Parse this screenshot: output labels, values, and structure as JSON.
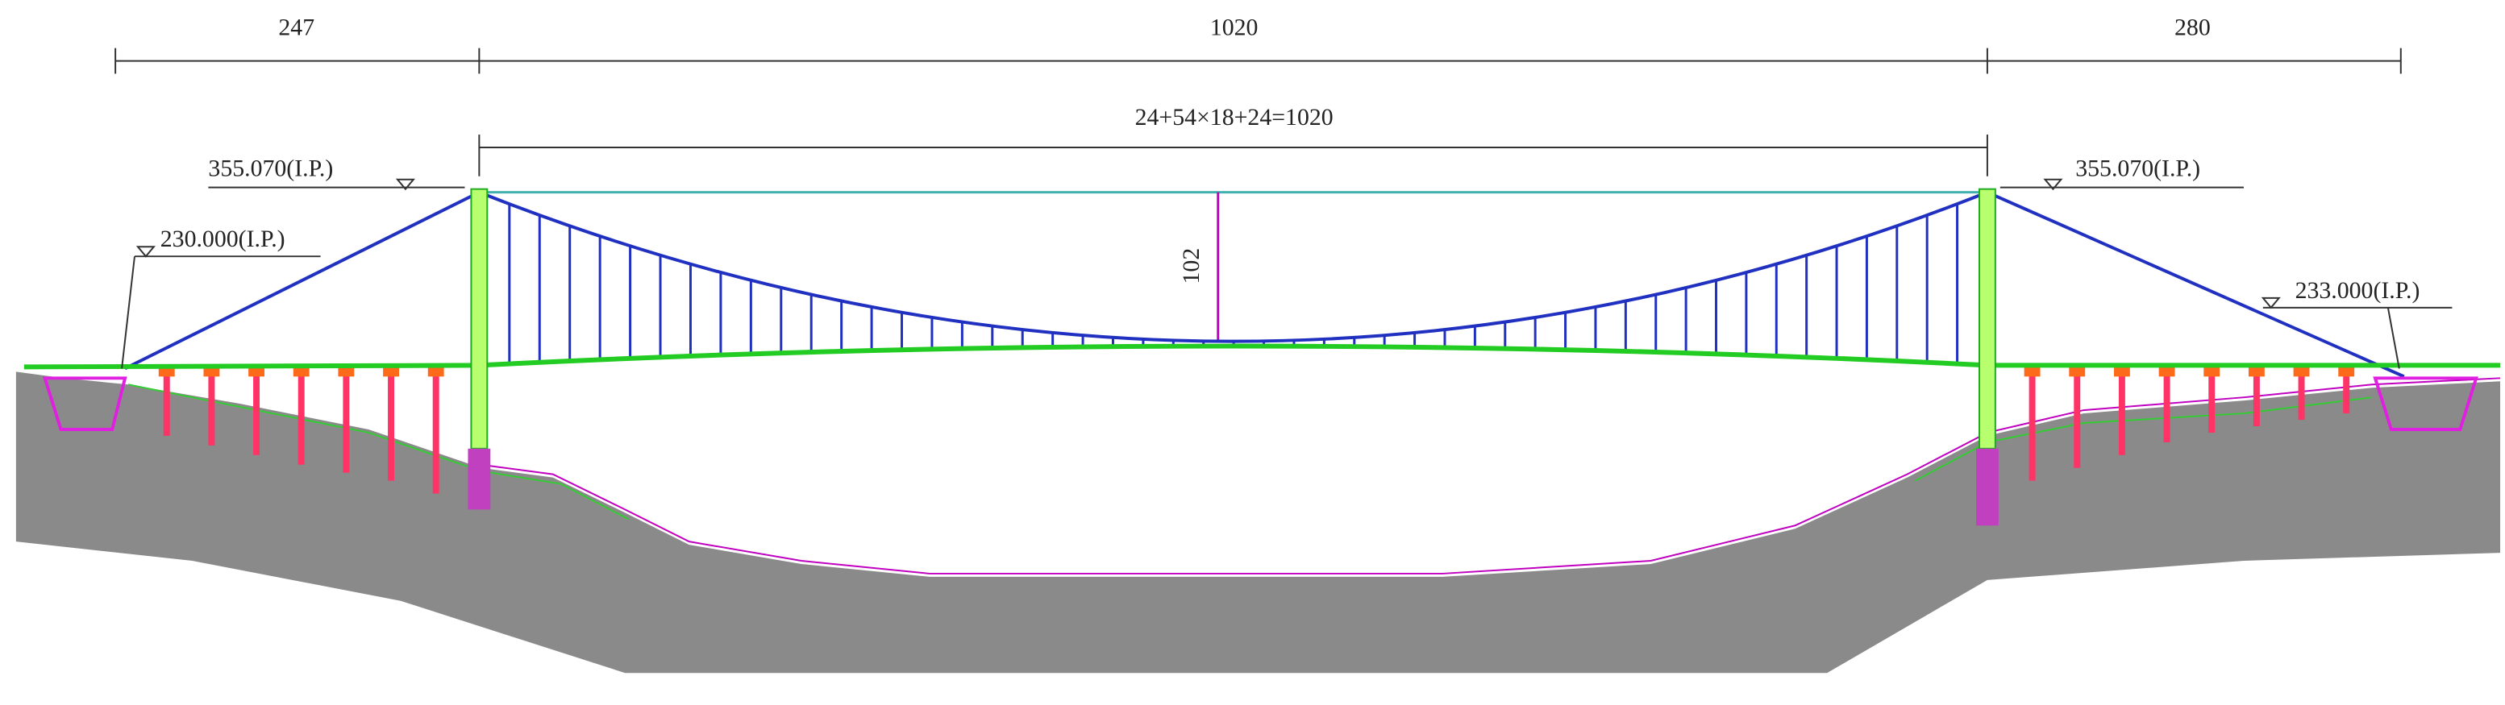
{
  "dimensions": {
    "spans": [
      "247",
      "1020",
      "280"
    ],
    "main_span_formula": "24+54×18+24=1020",
    "sag": "102"
  },
  "elevations": {
    "left_tower": "355.070(I.P.)",
    "right_tower": "355.070(I.P.)",
    "left_anchor": "230.000(I.P.)",
    "right_anchor": "233.000(I.P.)"
  }
}
